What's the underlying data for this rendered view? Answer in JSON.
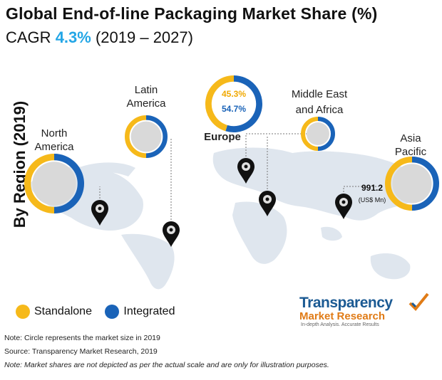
{
  "header": {
    "title": "Global End-of-line Packaging Market Share (%)",
    "cagr_prefix": "CAGR",
    "cagr_value": "4.3%",
    "cagr_period": "(2019 – 2027)"
  },
  "side_label": "By Region (2019)",
  "chart_data": {
    "type": "pie",
    "title": "Global End-of-line Packaging Market Share (%)",
    "series_names": [
      "Standalone",
      "Integrated"
    ],
    "regions": [
      {
        "key": "north_america",
        "label": "North America"
      },
      {
        "key": "latin_america",
        "label": "Latin America"
      },
      {
        "key": "europe",
        "label": "Europe",
        "values": [
          45.3,
          54.7
        ],
        "value_labels": [
          "45.3%",
          "54.7%"
        ]
      },
      {
        "key": "middle_east_africa",
        "label": "Middle East and Africa"
      },
      {
        "key": "asia_pacific",
        "label": "Asia Pacific",
        "market_size": "991.2",
        "market_size_unit": "(US$ Mn)"
      }
    ]
  },
  "legend": {
    "standalone": "Standalone",
    "integrated": "Integrated"
  },
  "colors": {
    "standalone": "#f6b91a",
    "integrated": "#1a63b8",
    "map": "#dfe6ee",
    "inner": "#d9d9d9"
  },
  "notes": {
    "n1": "Note: Circle represents the market size in 2019",
    "n2": "Source: Transparency Market Research, 2019",
    "n3": "Note: Market shares are not depicted as per the actual scale and are only for illustration purposes."
  },
  "logo": {
    "brand": "Transparency",
    "sub": "Market Research",
    "tag": "In-depth Analysis. Accurate Results",
    "icon": "check-icon"
  }
}
